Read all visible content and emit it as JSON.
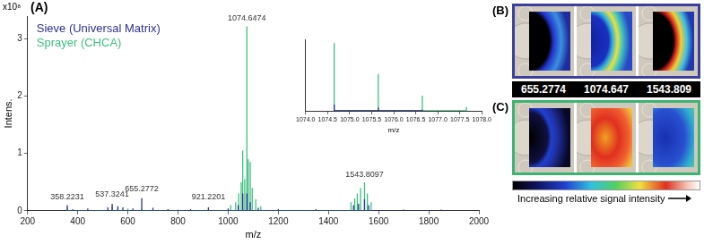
{
  "chart_data": [
    {
      "type": "line",
      "panel_label": "(A)",
      "xlabel": "m/z",
      "ylabel": "Intens.",
      "y_exponent_label": "x10⁸",
      "xlim": [
        200,
        2000
      ],
      "xticks": [
        200,
        400,
        600,
        800,
        1000,
        1200,
        1400,
        1600,
        1800,
        2000
      ],
      "ylim": [
        0,
        3.4
      ],
      "yticks": [
        0,
        1,
        2,
        3
      ],
      "grid": false,
      "legend": "top-left",
      "series": [
        {
          "name": "Sieve (Universal Matrix)",
          "color": "#2e3192",
          "x": [
            358.2,
            380,
            440,
            520,
            537.3,
            560,
            580,
            620,
            655.3,
            700,
            760,
            850,
            921.2,
            1000,
            1040,
            1058,
            1074.6,
            1088,
            1120,
            1200,
            1350,
            1500,
            1520,
            1543.8,
            1560,
            1700,
            1850
          ],
          "values": [
            0.1,
            0.03,
            0.04,
            0.06,
            0.12,
            0.08,
            0.06,
            0.04,
            0.22,
            0.05,
            0.03,
            0.03,
            0.06,
            0.04,
            0.1,
            0.3,
            0.3,
            0.15,
            0.05,
            0.03,
            0.03,
            0.1,
            0.12,
            0.2,
            0.1,
            0.02,
            0.02
          ]
        },
        {
          "name": "Sprayer (CHCA)",
          "color": "#3dbf7f",
          "x": [
            358.2,
            537.3,
            560,
            600,
            655.3,
            800,
            921.2,
            1010,
            1030,
            1042,
            1052,
            1058,
            1066,
            1074.6,
            1080,
            1088,
            1096,
            1110,
            1130,
            1490,
            1505,
            1515,
            1528,
            1543.8,
            1555,
            1570
          ],
          "values": [
            0.05,
            0.08,
            0.05,
            0.04,
            0.03,
            0.02,
            0.03,
            0.1,
            0.15,
            0.3,
            0.5,
            1.05,
            0.55,
            3.22,
            0.9,
            0.85,
            0.4,
            0.2,
            0.08,
            0.15,
            0.22,
            0.3,
            0.4,
            0.5,
            0.3,
            0.15
          ]
        }
      ],
      "annotations": [
        {
          "x": 358.2231,
          "y": 0.15,
          "text": "358.2231"
        },
        {
          "x": 537.3241,
          "y": 0.2,
          "text": "537.3241"
        },
        {
          "x": 655.2772,
          "y": 0.3,
          "text": "655.2772"
        },
        {
          "x": 921.2201,
          "y": 0.15,
          "text": "921.2201"
        },
        {
          "x": 1074.6474,
          "y": 3.28,
          "text": "1074.6474"
        },
        {
          "x": 1543.8097,
          "y": 0.55,
          "text": "1543.8097"
        }
      ]
    },
    {
      "type": "line",
      "xlabel": "m/z",
      "xlim": [
        1074,
        1078
      ],
      "xticks": [
        {
          "value": 1074,
          "label": "1074.0"
        },
        {
          "value": 1074.5,
          "label": "1074.5"
        },
        {
          "value": 1075,
          "label": "1075.0"
        },
        {
          "value": 1075.5,
          "label": "1075.5"
        },
        {
          "value": 1076,
          "label": "1076.0"
        },
        {
          "value": 1076.5,
          "label": "1076.5"
        },
        {
          "value": 1077,
          "label": "1077.0"
        },
        {
          "value": 1077.5,
          "label": "1077.5"
        },
        {
          "value": 1078,
          "label": "1078.0"
        }
      ],
      "ylim": [
        0,
        3.4
      ],
      "tick_labels": "x",
      "grid": false,
      "series": [
        {
          "name": "Sieve (Universal Matrix)",
          "color": "#2e3192",
          "x": [
            1074.65,
            1075.65,
            1076.65
          ],
          "values": [
            0.3,
            0.16,
            0.05
          ]
        },
        {
          "name": "Sprayer (CHCA)",
          "color": "#3dbf7f",
          "x": [
            1074.65,
            1075.65,
            1076.65,
            1077.65
          ],
          "values": [
            3.22,
            1.75,
            0.72,
            0.18
          ]
        }
      ]
    }
  ],
  "image_panels": {
    "panels": [
      {
        "label": "(B)",
        "color": "#3b3f9e"
      },
      {
        "label": "(C)",
        "color": "#3cb371"
      }
    ],
    "mz_labels": [
      "655.2774",
      "1074.647",
      "1543.809"
    ],
    "colorbar_label": "Increasing relative signal intensity"
  }
}
